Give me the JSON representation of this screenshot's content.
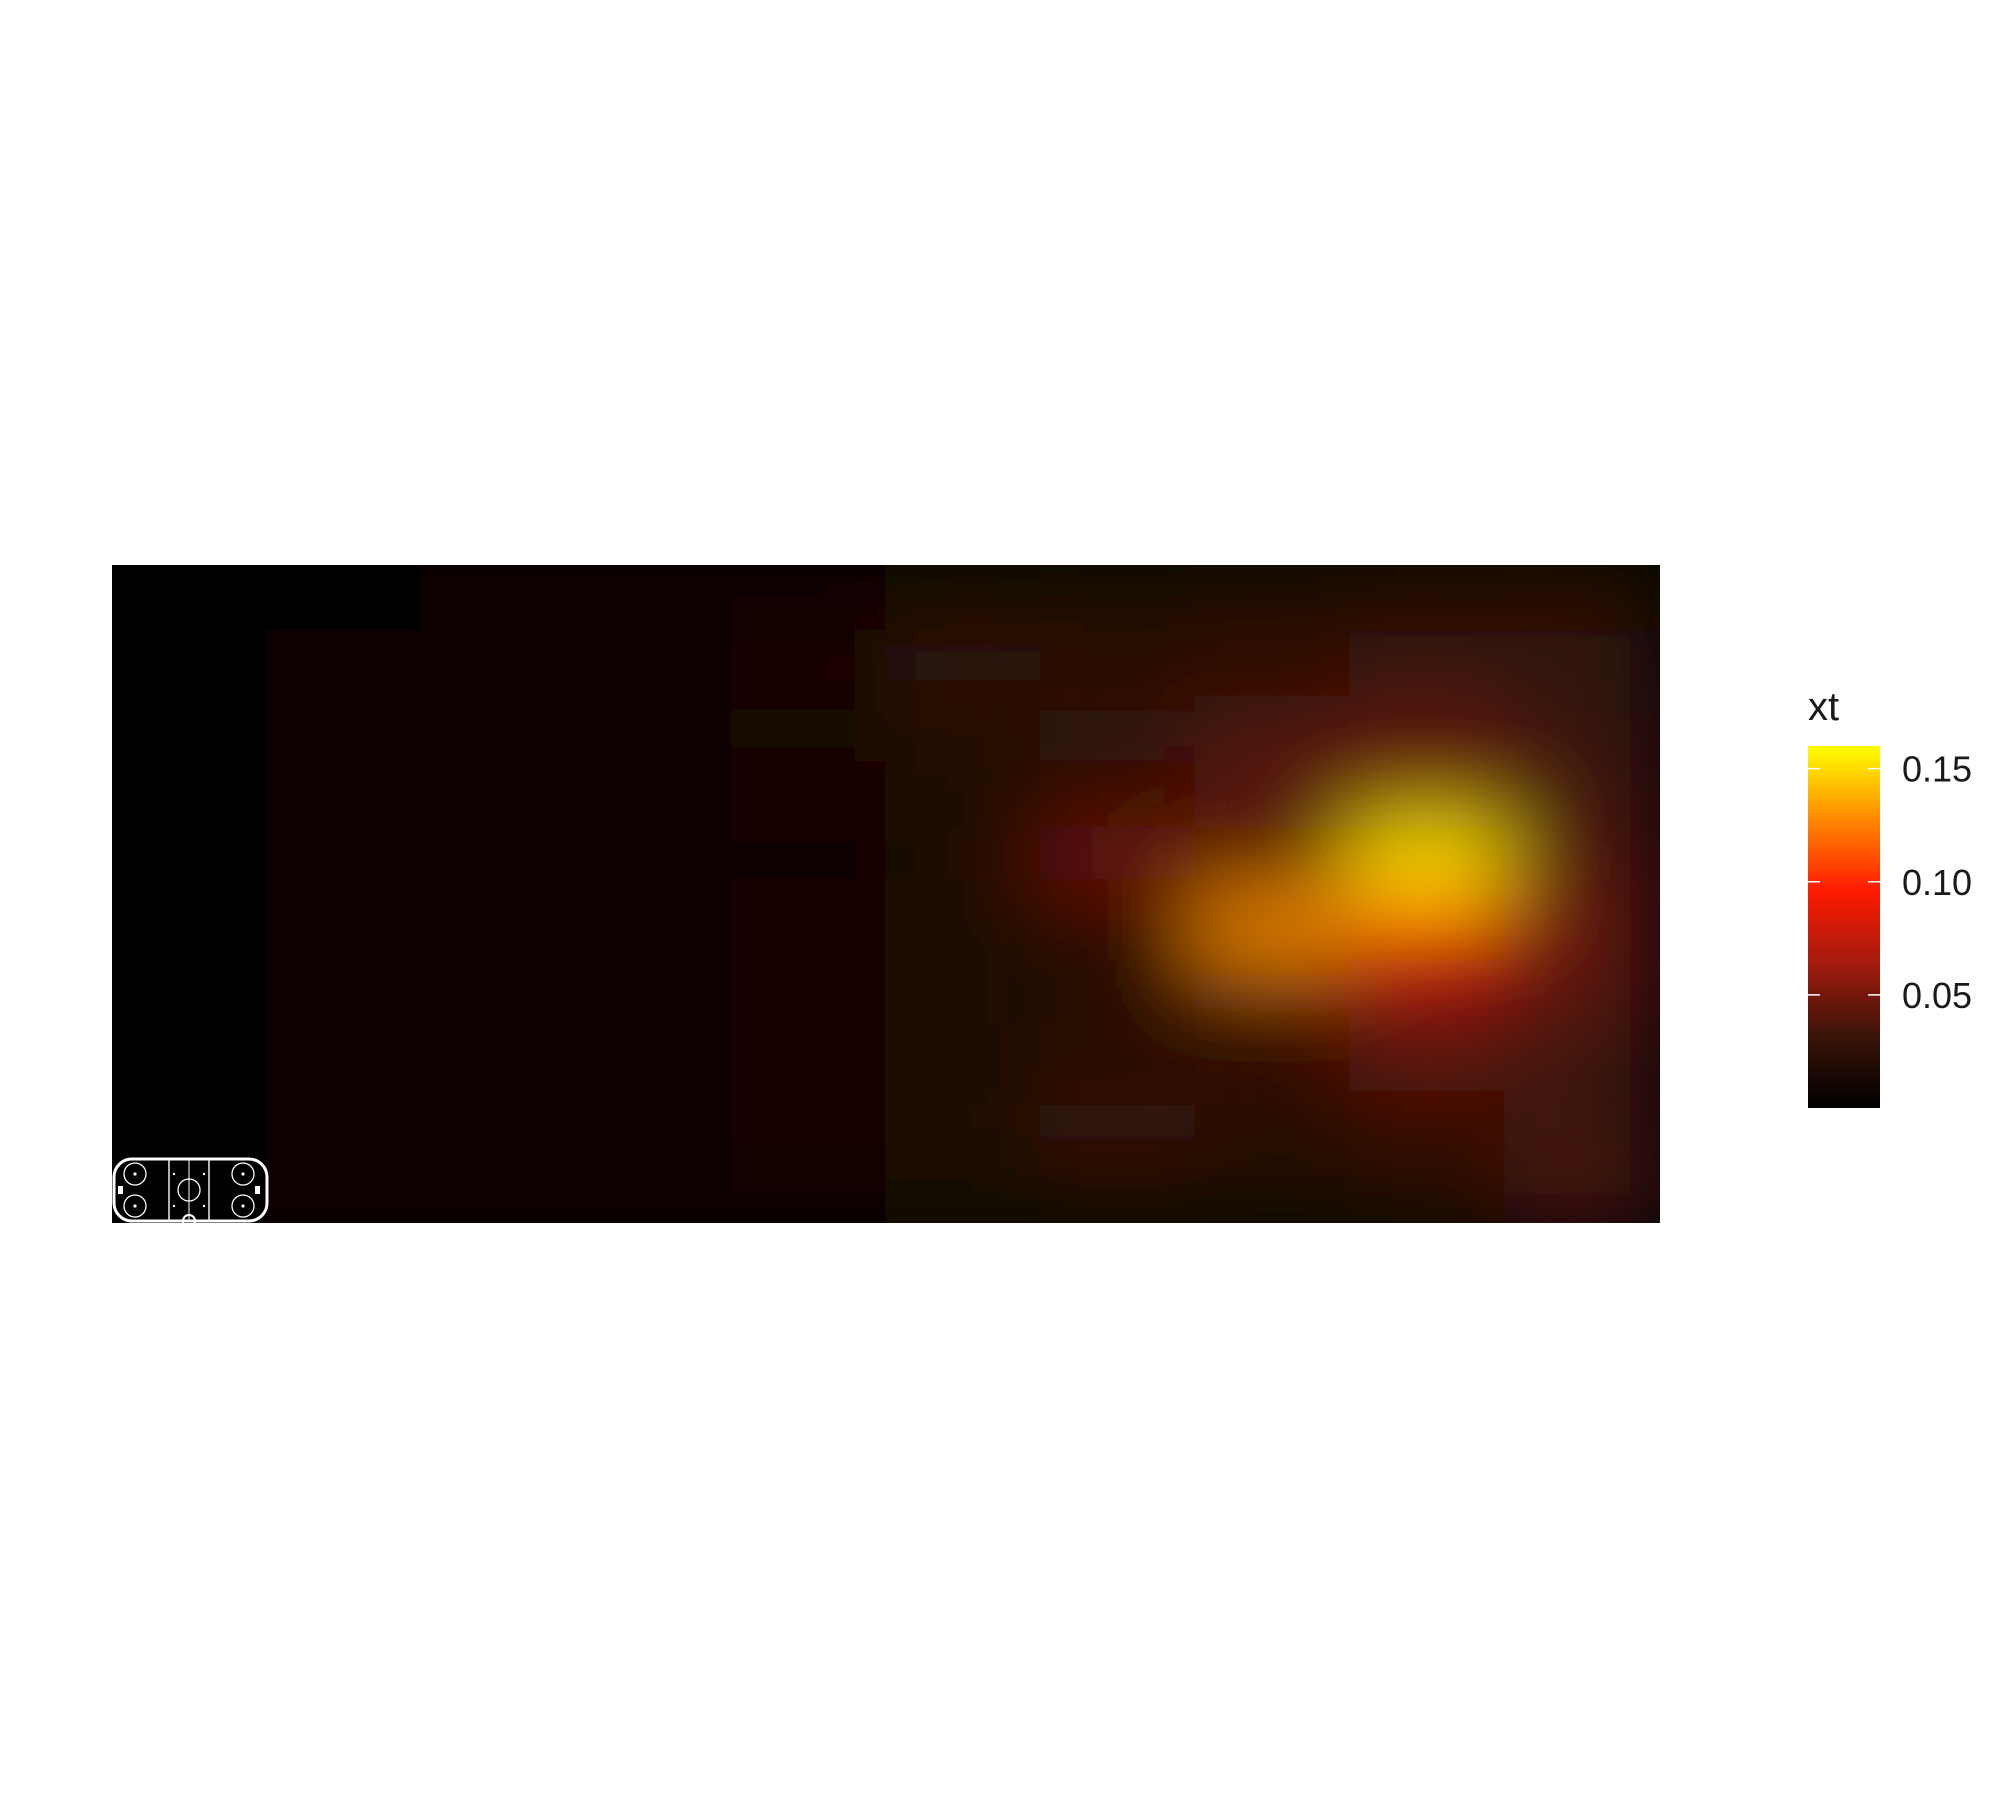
{
  "chart_data": {
    "type": "heatmap",
    "title": "",
    "xlabel": "",
    "ylabel": "",
    "grid": false,
    "legend": {
      "title": "xt",
      "position": "right",
      "range": [
        0.0,
        0.16
      ],
      "ticks": [
        0.05,
        0.1,
        0.15
      ],
      "tick_labels": [
        "0.05",
        "0.10",
        "0.15"
      ],
      "colors": [
        "#000000",
        "#3a1408",
        "#a31b0e",
        "#ff1a00",
        "#ff8a00",
        "#ffff00"
      ]
    },
    "grid_shape": [
      10,
      10
    ],
    "values": [
      [
        0.001,
        0.003,
        0.005,
        0.007,
        0.01,
        0.016,
        0.018,
        0.022,
        0.024,
        0.026
      ],
      [
        0.001,
        0.004,
        0.006,
        0.008,
        0.01,
        0.028,
        0.022,
        0.026,
        0.03,
        0.028
      ],
      [
        0.001,
        0.004,
        0.006,
        0.008,
        0.012,
        0.018,
        0.03,
        0.034,
        0.04,
        0.03
      ],
      [
        0.001,
        0.004,
        0.006,
        0.008,
        0.01,
        0.016,
        0.02,
        0.046,
        0.05,
        0.036
      ],
      [
        0.001,
        0.004,
        0.006,
        0.008,
        0.008,
        0.016,
        0.05,
        0.01,
        0.158,
        0.038
      ],
      [
        0.001,
        0.004,
        0.006,
        0.008,
        0.01,
        0.016,
        0.008,
        0.13,
        0.1,
        0.046
      ],
      [
        0.001,
        0.004,
        0.006,
        0.008,
        0.01,
        0.016,
        0.026,
        0.036,
        0.05,
        0.04
      ],
      [
        0.001,
        0.004,
        0.006,
        0.008,
        0.01,
        0.016,
        0.018,
        0.026,
        0.044,
        0.034
      ],
      [
        0.001,
        0.004,
        0.006,
        0.008,
        0.01,
        0.016,
        0.032,
        0.022,
        0.024,
        0.028
      ],
      [
        0.001,
        0.004,
        0.006,
        0.008,
        0.01,
        0.016,
        0.018,
        0.02,
        0.026,
        0.04
      ]
    ]
  },
  "inset": {
    "icon": "hockey-rink-icon"
  }
}
